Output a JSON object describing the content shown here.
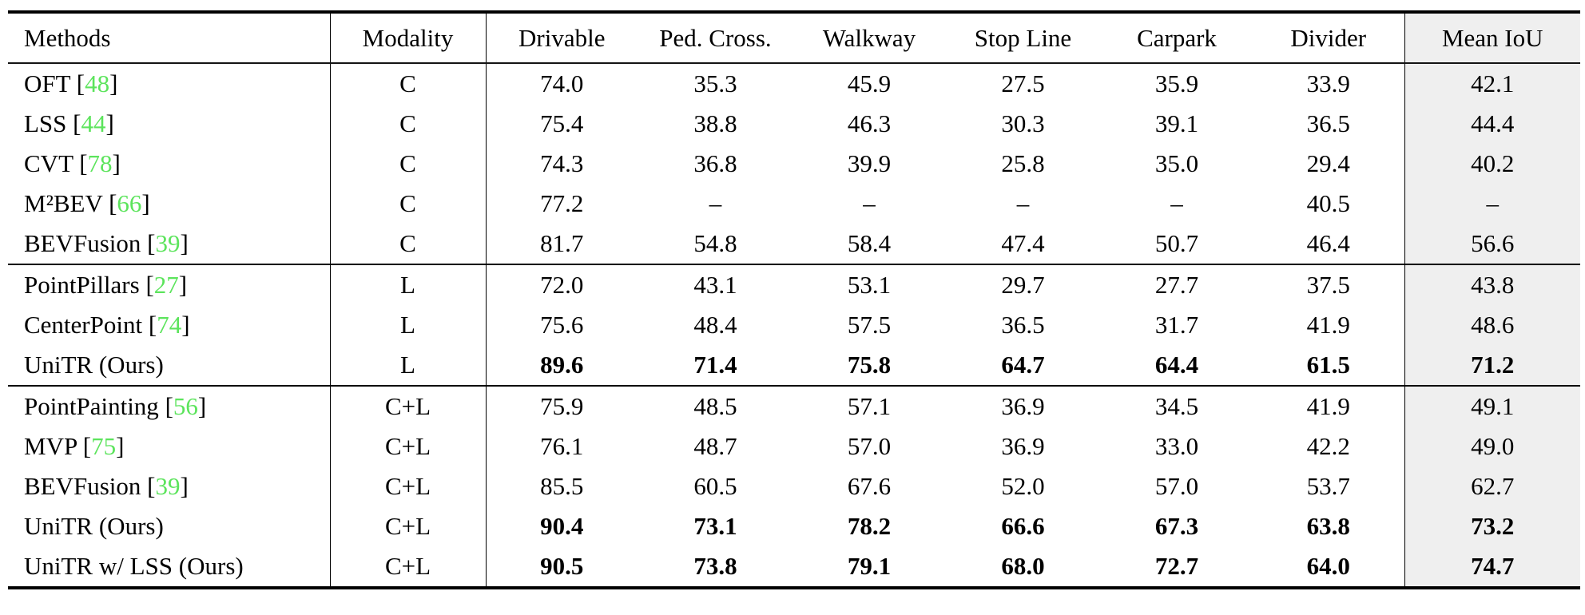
{
  "table": {
    "columns": [
      "Methods",
      "Modality",
      "Drivable",
      "Ped. Cross.",
      "Walkway",
      "Stop Line",
      "Carpark",
      "Divider",
      "Mean IoU"
    ],
    "missing_value": "–",
    "colors": {
      "citation_green": "#5ce45c",
      "mean_iou_column_bg": "#efefef",
      "rule_black": "#000000"
    },
    "groups": [
      {
        "rows": [
          {
            "method": "OFT",
            "citation": "48",
            "modality": "C",
            "scores": [
              "74.0",
              "35.3",
              "45.9",
              "27.5",
              "35.9",
              "33.9"
            ],
            "mean_iou": "42.1",
            "bold": false
          },
          {
            "method": "LSS",
            "citation": "44",
            "modality": "C",
            "scores": [
              "75.4",
              "38.8",
              "46.3",
              "30.3",
              "39.1",
              "36.5"
            ],
            "mean_iou": "44.4",
            "bold": false
          },
          {
            "method": "CVT",
            "citation": "78",
            "modality": "C",
            "scores": [
              "74.3",
              "36.8",
              "39.9",
              "25.8",
              "35.0",
              "29.4"
            ],
            "mean_iou": "40.2",
            "bold": false
          },
          {
            "method": "M²BEV",
            "citation": "66",
            "modality": "C",
            "scores": [
              "77.2",
              "–",
              "–",
              "–",
              "–",
              "40.5"
            ],
            "mean_iou": "–",
            "bold": false
          },
          {
            "method": "BEVFusion",
            "citation": "39",
            "modality": "C",
            "scores": [
              "81.7",
              "54.8",
              "58.4",
              "47.4",
              "50.7",
              "46.4"
            ],
            "mean_iou": "56.6",
            "bold": false
          }
        ]
      },
      {
        "rows": [
          {
            "method": "PointPillars",
            "citation": "27",
            "modality": "L",
            "scores": [
              "72.0",
              "43.1",
              "53.1",
              "29.7",
              "27.7",
              "37.5"
            ],
            "mean_iou": "43.8",
            "bold": false
          },
          {
            "method": "CenterPoint",
            "citation": "74",
            "modality": "L",
            "scores": [
              "75.6",
              "48.4",
              "57.5",
              "36.5",
              "31.7",
              "41.9"
            ],
            "mean_iou": "48.6",
            "bold": false
          },
          {
            "method": "UniTR (Ours)",
            "citation": null,
            "modality": "L",
            "scores": [
              "89.6",
              "71.4",
              "75.8",
              "64.7",
              "64.4",
              "61.5"
            ],
            "mean_iou": "71.2",
            "bold": true
          }
        ]
      },
      {
        "rows": [
          {
            "method": "PointPainting",
            "citation": "56",
            "modality": "C+L",
            "scores": [
              "75.9",
              "48.5",
              "57.1",
              "36.9",
              "34.5",
              "41.9"
            ],
            "mean_iou": "49.1",
            "bold": false
          },
          {
            "method": "MVP",
            "citation": "75",
            "modality": "C+L",
            "scores": [
              "76.1",
              "48.7",
              "57.0",
              "36.9",
              "33.0",
              "42.2"
            ],
            "mean_iou": "49.0",
            "bold": false
          },
          {
            "method": "BEVFusion",
            "citation": "39",
            "modality": "C+L",
            "scores": [
              "85.5",
              "60.5",
              "67.6",
              "52.0",
              "57.0",
              "53.7"
            ],
            "mean_iou": "62.7",
            "bold": false
          },
          {
            "method": "UniTR (Ours)",
            "citation": null,
            "modality": "C+L",
            "scores": [
              "90.4",
              "73.1",
              "78.2",
              "66.6",
              "67.3",
              "63.8"
            ],
            "mean_iou": "73.2",
            "bold": true
          },
          {
            "method": "UniTR w/ LSS (Ours)",
            "citation": null,
            "modality": "C+L",
            "scores": [
              "90.5",
              "73.8",
              "79.1",
              "68.0",
              "72.7",
              "64.0"
            ],
            "mean_iou": "74.7",
            "bold": true
          }
        ]
      }
    ]
  }
}
